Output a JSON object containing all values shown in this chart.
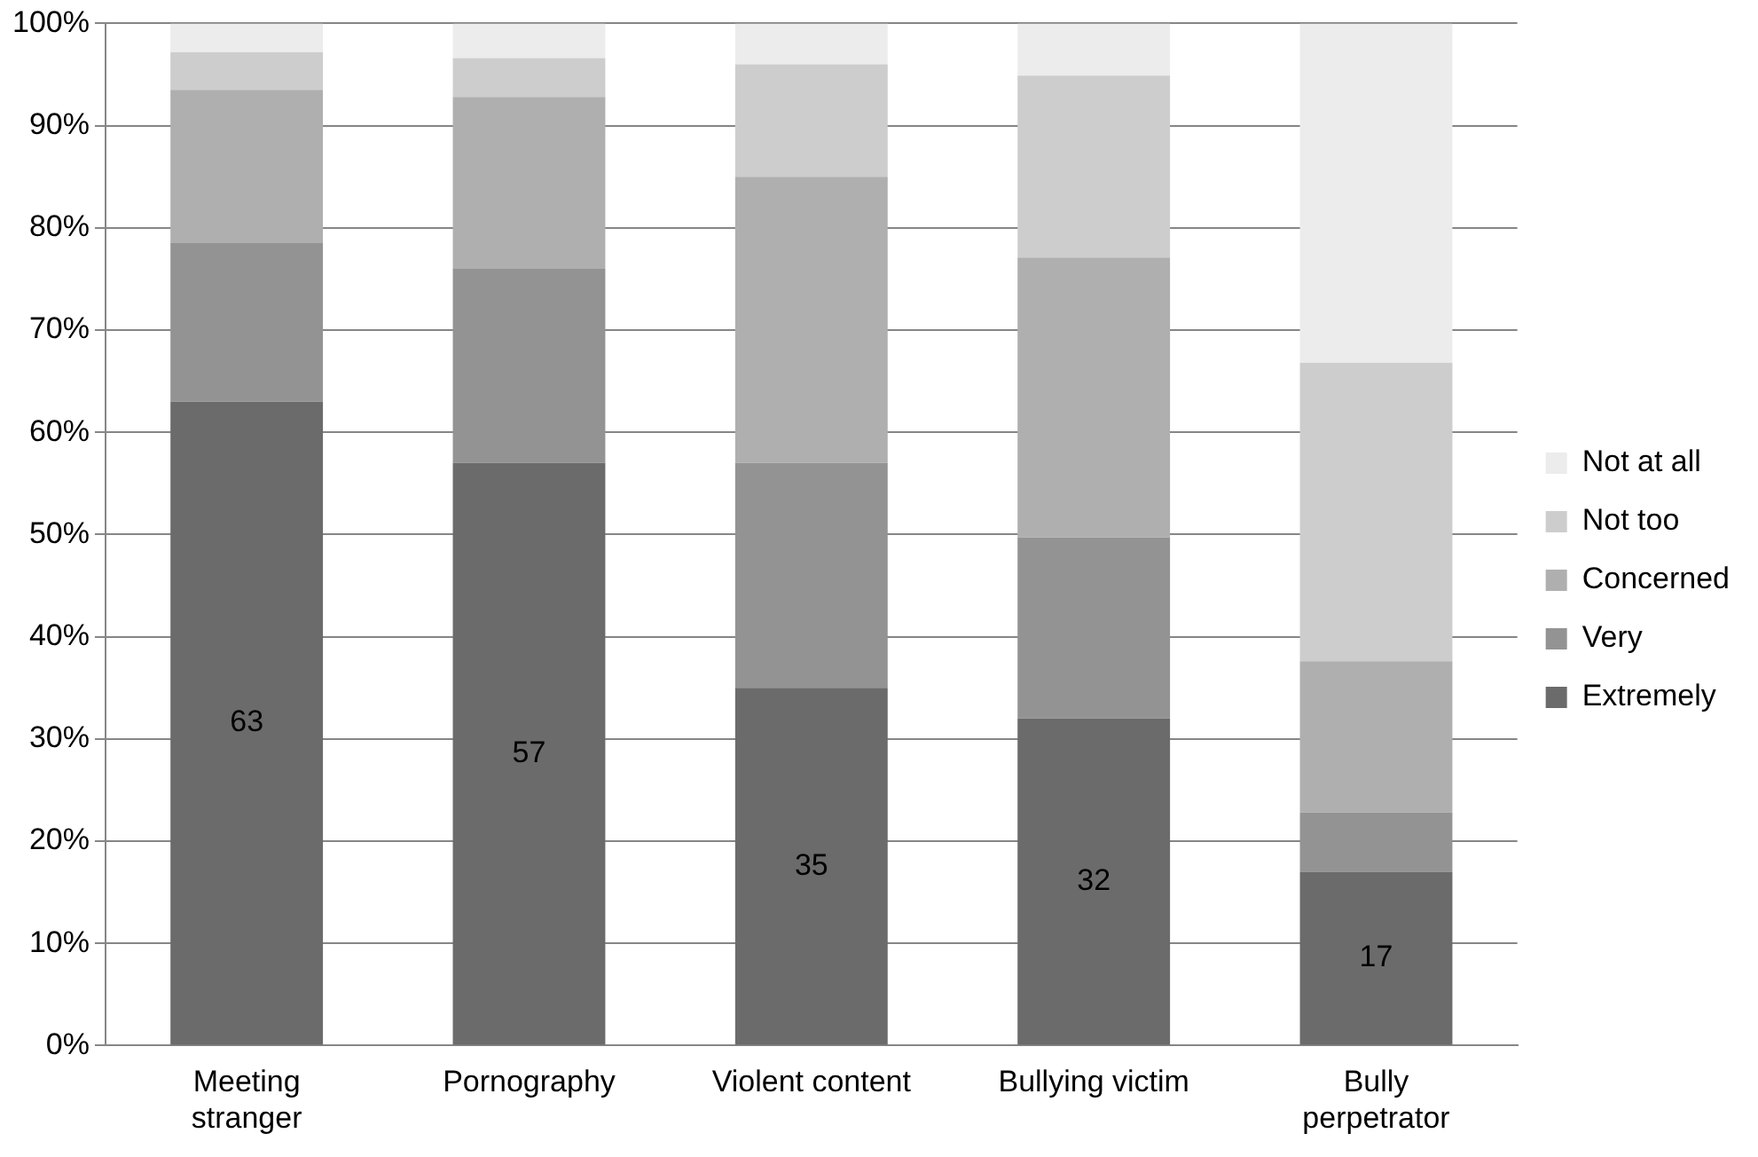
{
  "chart_data": {
    "type": "bar",
    "stacked": true,
    "categories": [
      "Meeting stranger",
      "Pornography",
      "Violent content",
      "Bullying victim",
      "Bully perpetrator"
    ],
    "series": [
      {
        "name": "Extremely",
        "color": "#6b6b6b",
        "values": [
          63,
          57,
          35,
          32,
          17
        ],
        "value_labels": [
          "63",
          "57",
          "35",
          "32",
          "17"
        ]
      },
      {
        "name": "Very",
        "color": "#939393",
        "values": [
          15.5,
          19,
          22,
          17.7,
          5.8
        ]
      },
      {
        "name": "Concerned",
        "color": "#afafaf",
        "values": [
          15,
          16.8,
          28,
          27.4,
          14.8
        ]
      },
      {
        "name": "Not too",
        "color": "#cdcdcd",
        "values": [
          3.7,
          3.8,
          11,
          17.8,
          29.2
        ]
      },
      {
        "name": "Not at all",
        "color": "#ececec",
        "values": [
          2.8,
          3.4,
          4,
          5.1,
          33.2
        ]
      }
    ],
    "ylim": [
      0,
      100
    ],
    "yticks": [
      {
        "value": 0,
        "label": "0%"
      },
      {
        "value": 10,
        "label": "10%"
      },
      {
        "value": 20,
        "label": "20%"
      },
      {
        "value": 30,
        "label": "30%"
      },
      {
        "value": 40,
        "label": "40%"
      },
      {
        "value": 50,
        "label": "50%"
      },
      {
        "value": 60,
        "label": "60%"
      },
      {
        "value": 70,
        "label": "70%"
      },
      {
        "value": 80,
        "label": "80%"
      },
      {
        "value": 90,
        "label": "90%"
      },
      {
        "value": 100,
        "label": "100%"
      }
    ],
    "grid": "y",
    "legend": "right"
  }
}
